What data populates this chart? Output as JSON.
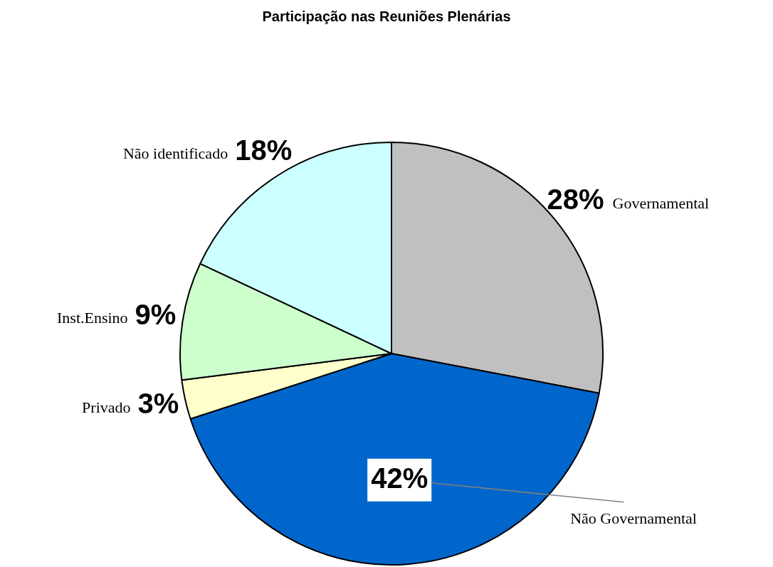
{
  "chart_data": {
    "type": "pie",
    "title": "Participação nas Reuniões Plenárias",
    "categories": [
      "Governamental",
      "Não Governamental",
      "Privado",
      "Inst.Ensino",
      "Não identificado"
    ],
    "values": [
      28,
      42,
      3,
      9,
      18
    ],
    "colors": [
      "#c0c0c0",
      "#0066cc",
      "#ffffcc",
      "#ccffcc",
      "#ccffff"
    ],
    "value_labels": [
      "28%",
      "42%",
      "3%",
      "9%",
      "18%"
    ],
    "legend": false
  }
}
